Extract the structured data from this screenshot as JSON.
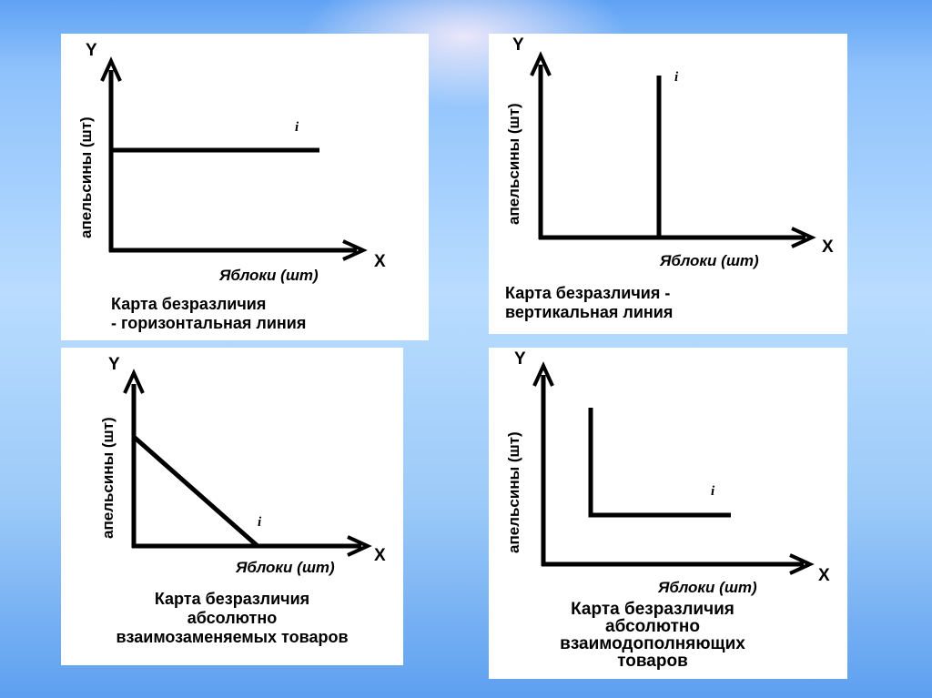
{
  "panels": [
    {
      "y_axis_letter": "Y",
      "x_axis_letter": "X",
      "ylabel": "апельсины (шт)",
      "xlabel": "Яблоки (шт)",
      "curve_label": "i",
      "caption_lines": [
        "Карта безразличия",
        "- горизонтальная линия"
      ]
    },
    {
      "y_axis_letter": "Y",
      "x_axis_letter": "X",
      "ylabel": "апельсины (шт)",
      "xlabel": "Яблоки (шт)",
      "curve_label": "i",
      "caption_lines": [
        "Карта безразличия -",
        "вертикальная линия"
      ]
    },
    {
      "y_axis_letter": "Y",
      "x_axis_letter": "X",
      "ylabel": "апельсины (шт)",
      "xlabel": "Яблоки (шт)",
      "curve_label": "i",
      "caption_lines": [
        "Карта безразличия",
        "абсолютно",
        "взаимозаменяемых товаров"
      ]
    },
    {
      "y_axis_letter": "Y",
      "x_axis_letter": "X",
      "ylabel": "апельсины (шт)",
      "xlabel": "Яблоки (шт)",
      "curve_label": "i",
      "caption_lines": [
        "Карта безразличия",
        "абсолютно",
        "взаимодополняющих",
        "товаров"
      ]
    }
  ]
}
